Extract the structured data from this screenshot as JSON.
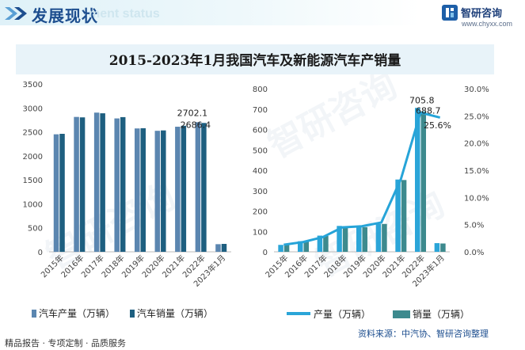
{
  "header": {
    "title": "发展现状",
    "subtitle": "ment status"
  },
  "logo": {
    "name": "智研咨询",
    "url": "www.chyxx.com"
  },
  "watermark_text": "智研咨询",
  "footer": {
    "left": "精品报告 · 专项定制 · 品质服务",
    "source": "资料来源：中汽协、智研咨询整理"
  },
  "colors": {
    "production": "#5b86b0",
    "sales": "#1e5f80",
    "ratio_line": "#26a4d8",
    "nev_production": "#2ba5d8",
    "nev_sales": "#3d8a8e",
    "header_title": "#1d4e8f"
  },
  "chart_data": [
    {
      "type": "bar",
      "title": "2015-2023年1月我国汽车及新能源汽车产销量",
      "categories": [
        "2015年",
        "2016年",
        "2017年",
        "2018年",
        "2019年",
        "2020年",
        "2021年",
        "2022年",
        "2023年1月"
      ],
      "series": [
        {
          "name": "汽车产量（万辆）",
          "values": [
            2450,
            2812,
            2902,
            2781,
            2572,
            2523,
            2608,
            2702.1,
            159
          ]
        },
        {
          "name": "汽车销量（万辆）",
          "values": [
            2460,
            2803,
            2888,
            2808,
            2577,
            2531,
            2628,
            2686.4,
            165
          ]
        }
      ],
      "data_labels": [
        "2702.1",
        "2686.4"
      ],
      "ylim": [
        0,
        3500
      ],
      "yticks": [
        "0",
        "500",
        "1000",
        "1500",
        "2000",
        "2500",
        "3000",
        "3500"
      ],
      "legend_position": "bottom"
    },
    {
      "type": "bar",
      "categories": [
        "2015年",
        "2016年",
        "2017年",
        "2018年",
        "2019年",
        "2020年",
        "2021年",
        "2022年",
        "2023年1月"
      ],
      "series": [
        {
          "name": "产量（万辆）",
          "values": [
            34.0,
            51.7,
            79.4,
            127.0,
            124.2,
            136.6,
            354.5,
            705.8,
            42.5
          ]
        },
        {
          "name": "销量（万辆）",
          "values": [
            33.1,
            50.7,
            77.7,
            125.6,
            120.6,
            136.7,
            352.1,
            688.7,
            40.8
          ]
        },
        {
          "name": "",
          "type": "line",
          "axis": "right",
          "values": [
            1.3,
            1.8,
            2.7,
            4.5,
            4.7,
            5.4,
            13.4,
            25.6,
            24.7
          ]
        }
      ],
      "data_labels": [
        "705.8",
        "688.7",
        "25.6%"
      ],
      "ylim": [
        0,
        800
      ],
      "yticks": [
        "0",
        "100",
        "200",
        "300",
        "400",
        "500",
        "600",
        "700",
        "800"
      ],
      "y2lim": [
        0,
        30
      ],
      "y2ticks": [
        "0.0%",
        "5.0%",
        "10.0%",
        "15.0%",
        "20.0%",
        "25.0%",
        "30.0%"
      ],
      "legend_position": "bottom"
    }
  ]
}
